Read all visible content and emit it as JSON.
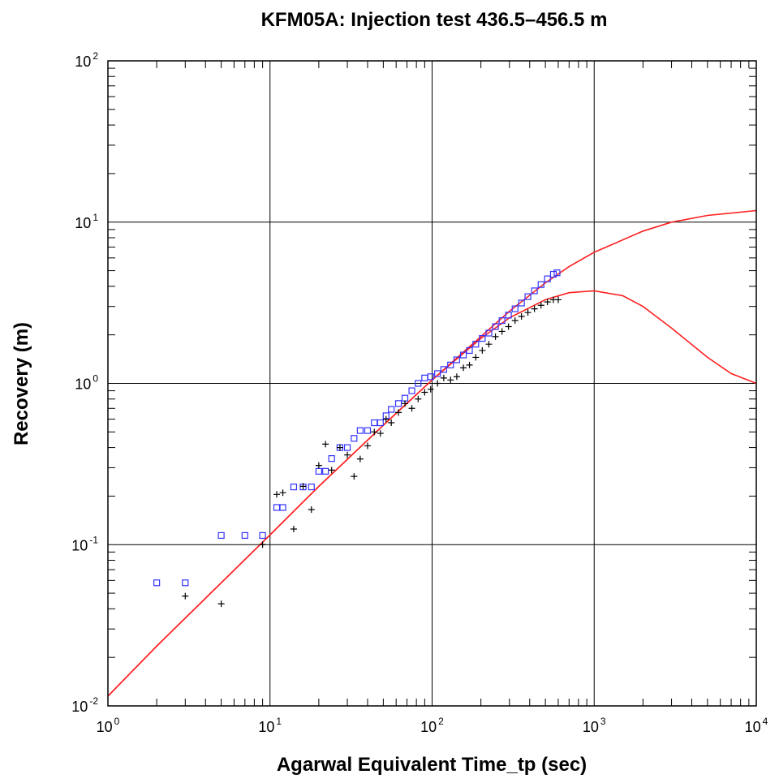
{
  "chart_data": {
    "type": "scatter",
    "title": "KFM05A: Injection test 436.5–456.5 m",
    "xlabel": "Agarwal Equivalent Time_tp (sec)",
    "ylabel": "Recovery  (m)",
    "xscale": "log",
    "yscale": "log",
    "xlim": [
      1,
      10000
    ],
    "ylim": [
      0.01,
      100
    ],
    "grid": true,
    "x_ticks": [
      {
        "base": "10",
        "exp": "0"
      },
      {
        "base": "10",
        "exp": "1"
      },
      {
        "base": "10",
        "exp": "2"
      },
      {
        "base": "10",
        "exp": "3"
      },
      {
        "base": "10",
        "exp": "4"
      }
    ],
    "y_ticks": [
      {
        "base": "10",
        "exp": "-2"
      },
      {
        "base": "10",
        "exp": "-1"
      },
      {
        "base": "10",
        "exp": "0"
      },
      {
        "base": "10",
        "exp": "1"
      },
      {
        "base": "10",
        "exp": "2"
      }
    ],
    "series": [
      {
        "marker": "square",
        "color": "#3333ff",
        "points": [
          [
            2,
            0.058
          ],
          [
            3,
            0.058
          ],
          [
            5,
            0.114
          ],
          [
            7,
            0.114
          ],
          [
            9,
            0.114
          ],
          [
            11,
            0.17
          ],
          [
            12,
            0.17
          ],
          [
            14,
            0.228
          ],
          [
            16,
            0.228
          ],
          [
            18,
            0.228
          ],
          [
            20,
            0.285
          ],
          [
            22,
            0.285
          ],
          [
            24,
            0.342
          ],
          [
            27,
            0.4
          ],
          [
            30,
            0.4
          ],
          [
            33,
            0.456
          ],
          [
            36,
            0.51
          ],
          [
            40,
            0.51
          ],
          [
            44,
            0.57
          ],
          [
            48,
            0.57
          ],
          [
            52,
            0.63
          ],
          [
            56,
            0.69
          ],
          [
            62,
            0.75
          ],
          [
            68,
            0.81
          ],
          [
            75,
            0.9
          ],
          [
            82,
            1.0
          ],
          [
            90,
            1.08
          ],
          [
            98,
            1.1
          ],
          [
            108,
            1.15
          ],
          [
            118,
            1.22
          ],
          [
            130,
            1.3
          ],
          [
            142,
            1.4
          ],
          [
            156,
            1.5
          ],
          [
            170,
            1.6
          ],
          [
            186,
            1.75
          ],
          [
            204,
            1.9
          ],
          [
            224,
            2.05
          ],
          [
            246,
            2.25
          ],
          [
            270,
            2.45
          ],
          [
            296,
            2.65
          ],
          [
            325,
            2.9
          ],
          [
            356,
            3.15
          ],
          [
            390,
            3.45
          ],
          [
            428,
            3.75
          ],
          [
            470,
            4.1
          ],
          [
            515,
            4.45
          ],
          [
            560,
            4.75
          ],
          [
            590,
            4.85
          ]
        ]
      },
      {
        "marker": "plus",
        "color": "#000000",
        "points": [
          [
            3,
            0.048
          ],
          [
            5,
            0.043
          ],
          [
            9,
            0.1
          ],
          [
            11,
            0.205
          ],
          [
            12,
            0.21
          ],
          [
            14,
            0.125
          ],
          [
            16,
            0.23
          ],
          [
            18,
            0.165
          ],
          [
            20,
            0.31
          ],
          [
            22,
            0.42
          ],
          [
            24,
            0.29
          ],
          [
            27,
            0.4
          ],
          [
            30,
            0.36
          ],
          [
            33,
            0.265
          ],
          [
            36,
            0.34
          ],
          [
            40,
            0.41
          ],
          [
            44,
            0.5
          ],
          [
            48,
            0.49
          ],
          [
            52,
            0.6
          ],
          [
            56,
            0.57
          ],
          [
            62,
            0.66
          ],
          [
            68,
            0.75
          ],
          [
            75,
            0.7
          ],
          [
            82,
            0.8
          ],
          [
            90,
            0.88
          ],
          [
            98,
            0.92
          ],
          [
            108,
            1.0
          ],
          [
            118,
            1.08
          ],
          [
            130,
            1.05
          ],
          [
            142,
            1.1
          ],
          [
            156,
            1.25
          ],
          [
            170,
            1.3
          ],
          [
            186,
            1.45
          ],
          [
            204,
            1.6
          ],
          [
            224,
            1.75
          ],
          [
            246,
            1.95
          ],
          [
            270,
            2.1
          ],
          [
            296,
            2.25
          ],
          [
            325,
            2.45
          ],
          [
            356,
            2.6
          ],
          [
            390,
            2.75
          ],
          [
            428,
            2.9
          ],
          [
            470,
            3.05
          ],
          [
            515,
            3.2
          ],
          [
            560,
            3.3
          ],
          [
            600,
            3.3
          ]
        ]
      },
      {
        "marker": "line",
        "color": "#ff2020",
        "points": [
          [
            1,
            0.0115
          ],
          [
            2,
            0.0235
          ],
          [
            5,
            0.058
          ],
          [
            10,
            0.115
          ],
          [
            20,
            0.23
          ],
          [
            50,
            0.55
          ],
          [
            100,
            1.05
          ],
          [
            200,
            1.95
          ],
          [
            300,
            2.8
          ],
          [
            500,
            4.2
          ],
          [
            700,
            5.3
          ],
          [
            1000,
            6.5
          ],
          [
            2000,
            8.8
          ],
          [
            3000,
            10.0
          ],
          [
            5000,
            11.0
          ],
          [
            10000,
            11.8
          ]
        ]
      },
      {
        "marker": "line",
        "color": "#ff2020",
        "points": [
          [
            1,
            0.0115
          ],
          [
            2,
            0.0235
          ],
          [
            5,
            0.058
          ],
          [
            10,
            0.115
          ],
          [
            20,
            0.23
          ],
          [
            50,
            0.55
          ],
          [
            100,
            1.05
          ],
          [
            200,
            1.9
          ],
          [
            300,
            2.55
          ],
          [
            500,
            3.3
          ],
          [
            700,
            3.65
          ],
          [
            1000,
            3.75
          ],
          [
            1500,
            3.5
          ],
          [
            2000,
            3.0
          ],
          [
            3000,
            2.2
          ],
          [
            5000,
            1.45
          ],
          [
            7000,
            1.15
          ],
          [
            10000,
            1.0
          ]
        ]
      }
    ]
  }
}
